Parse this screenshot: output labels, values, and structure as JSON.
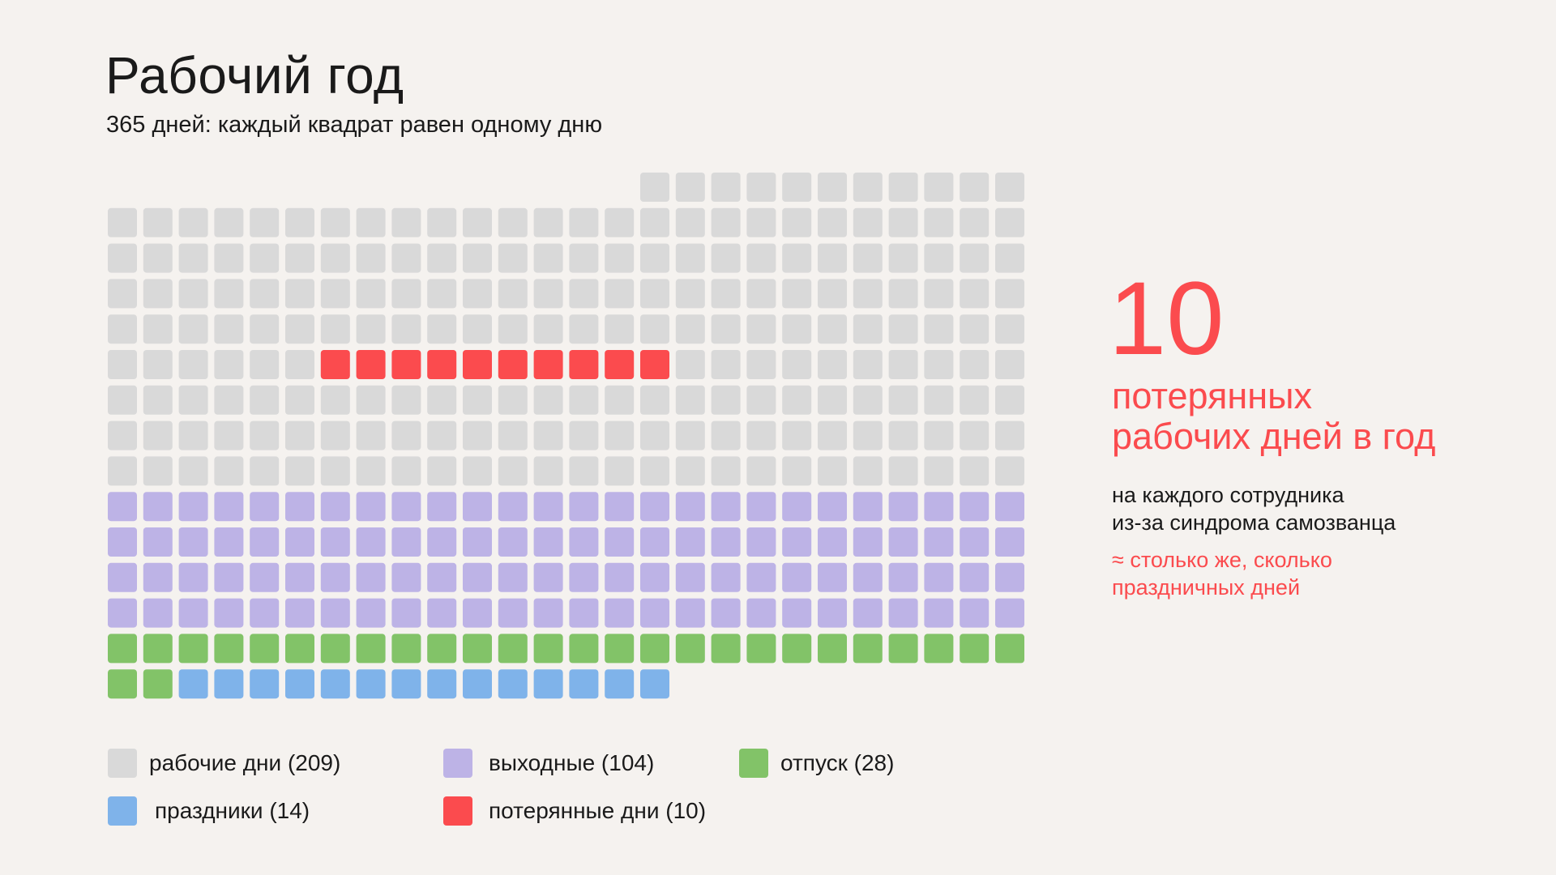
{
  "header": {
    "title": "Рабочий год",
    "subtitle": "365 дней: каждый квадрат равен одному дню"
  },
  "highlight": {
    "number": "10",
    "caption_line1": "потерянных",
    "caption_line2": "рабочих дней в год",
    "note_line1": "на каждого сотрудника",
    "note_line2": "из-за синдрома самозванца",
    "compare_line1": "≈ столько же, сколько",
    "compare_line2": "праздничных дней"
  },
  "colors": {
    "work": "#d9d9d9",
    "weekend": "#bdb3e6",
    "vacation": "#82c368",
    "holiday": "#7fb3ea",
    "lost": "#fb4b4e",
    "accent": "#fb4b4e",
    "background": "#f5f2ef"
  },
  "legend": [
    {
      "key": "work",
      "label": "рабочие дни (209)"
    },
    {
      "key": "weekend",
      "label": "выходные (104)"
    },
    {
      "key": "vacation",
      "label": "отпуск (28)"
    },
    {
      "key": "holiday",
      "label": "праздники (14)"
    },
    {
      "key": "lost",
      "label": "потерянные дни (10)"
    }
  ],
  "chart_data": {
    "type": "waffle",
    "total": 365,
    "unit": "1 square = 1 day",
    "categories": [
      "рабочие дни",
      "выходные",
      "отпуск",
      "праздники",
      "потерянные дни"
    ],
    "values": [
      209,
      104,
      28,
      14,
      10
    ],
    "grid_columns": 26,
    "grid_rows": 15
  }
}
